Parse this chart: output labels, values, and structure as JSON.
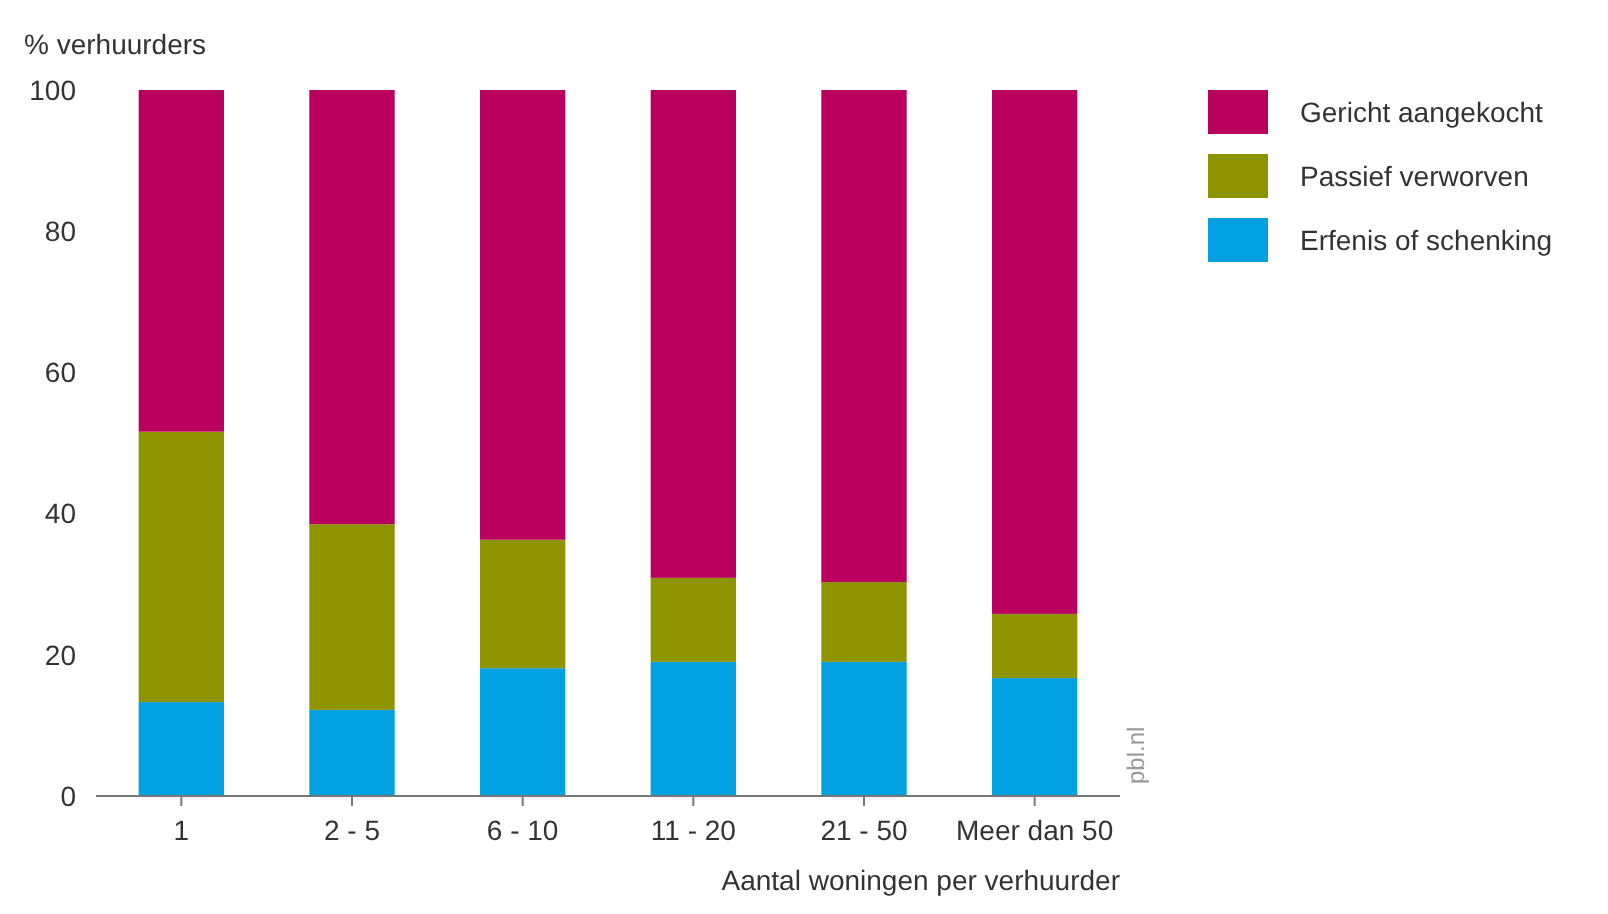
{
  "chart_data": {
    "type": "bar",
    "stacked": true,
    "ylabel": "% verhuurders",
    "xlabel": "Aantal woningen per verhuurder",
    "categories": [
      "1",
      "2 - 5",
      "6 - 10",
      "11 - 20",
      "21 - 50",
      "Meer dan 50"
    ],
    "series": [
      {
        "name": "Erfenis of schenking",
        "color": "#00a0e1",
        "values": [
          13.3,
          12.2,
          18.1,
          19,
          19,
          16.7
        ]
      },
      {
        "name": "Passief verworven",
        "color": "#8e9300",
        "values": [
          38.3,
          26.3,
          18.2,
          11.9,
          11.3,
          9.1
        ]
      },
      {
        "name": "Gericht aangekocht",
        "color": "#b9005f",
        "values": [
          48.4,
          61.5,
          63.7,
          69.1,
          69.7,
          74.2
        ]
      }
    ],
    "ylim": [
      0,
      100
    ],
    "yticks": [
      0,
      20,
      40,
      60,
      80,
      100
    ],
    "grid": false,
    "legend": "top right",
    "annotations": [
      "pbl.nl"
    ]
  }
}
